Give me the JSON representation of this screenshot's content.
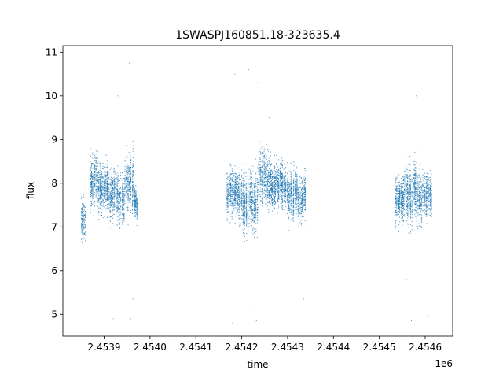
{
  "chart_data": {
    "type": "scatter",
    "title": "1SWASPJ160851.18-323635.4",
    "xlabel": "time",
    "ylabel": "flux",
    "x_offset_label": "1e6",
    "xlim": [
      2453810,
      2454660
    ],
    "ylim": [
      4.5,
      11.15
    ],
    "x_ticks": [
      2453900,
      2454000,
      2454100,
      2454200,
      2454300,
      2454400,
      2454500,
      2454600
    ],
    "x_tick_labels": [
      "2.4539",
      "2.4540",
      "2.4541",
      "2.4542",
      "2.4543",
      "2.4544",
      "2.4545",
      "2.4546"
    ],
    "y_ticks": [
      5,
      6,
      7,
      8,
      9,
      10,
      11
    ],
    "y_tick_labels": [
      "5",
      "6",
      "7",
      "8",
      "9",
      "10",
      "11"
    ],
    "grid": false,
    "legend": "none",
    "marker_color": "#1f77b4",
    "clusters": [
      {
        "x_start": 2453850,
        "x_end": 2453860,
        "y_center": 7.2,
        "y_spread": 0.4
      },
      {
        "x_start": 2453870,
        "x_end": 2453910,
        "y_center": 8.0,
        "y_spread": 0.5
      },
      {
        "x_start": 2453910,
        "x_end": 2453945,
        "y_center": 7.7,
        "y_spread": 0.5
      },
      {
        "x_start": 2453945,
        "x_end": 2453965,
        "y_center": 8.0,
        "y_spread": 0.55
      },
      {
        "x_start": 2453965,
        "x_end": 2453975,
        "y_center": 7.5,
        "y_spread": 0.3
      },
      {
        "x_start": 2454165,
        "x_end": 2454195,
        "y_center": 7.8,
        "y_spread": 0.45
      },
      {
        "x_start": 2454195,
        "x_end": 2454235,
        "y_center": 7.6,
        "y_spread": 0.55
      },
      {
        "x_start": 2454235,
        "x_end": 2454260,
        "y_center": 8.1,
        "y_spread": 0.6
      },
      {
        "x_start": 2454260,
        "x_end": 2454300,
        "y_center": 8.0,
        "y_spread": 0.45
      },
      {
        "x_start": 2454300,
        "x_end": 2454340,
        "y_center": 7.7,
        "y_spread": 0.45
      },
      {
        "x_start": 2454535,
        "x_end": 2454555,
        "y_center": 7.6,
        "y_spread": 0.45
      },
      {
        "x_start": 2454555,
        "x_end": 2454590,
        "y_center": 7.8,
        "y_spread": 0.55
      },
      {
        "x_start": 2454590,
        "x_end": 2454615,
        "y_center": 7.7,
        "y_spread": 0.45
      }
    ],
    "outliers": [
      {
        "x": 2453940,
        "y": 10.8
      },
      {
        "x": 2453955,
        "y": 10.75
      },
      {
        "x": 2453930,
        "y": 10.0
      },
      {
        "x": 2453965,
        "y": 10.7
      },
      {
        "x": 2453920,
        "y": 4.9
      },
      {
        "x": 2453958,
        "y": 4.9
      },
      {
        "x": 2453963,
        "y": 5.35
      },
      {
        "x": 2453950,
        "y": 5.2
      },
      {
        "x": 2454185,
        "y": 10.5
      },
      {
        "x": 2454215,
        "y": 10.6
      },
      {
        "x": 2454235,
        "y": 10.3
      },
      {
        "x": 2454260,
        "y": 9.5
      },
      {
        "x": 2454180,
        "y": 4.8
      },
      {
        "x": 2454232,
        "y": 4.85
      },
      {
        "x": 2454220,
        "y": 5.2
      },
      {
        "x": 2454335,
        "y": 5.35
      },
      {
        "x": 2454580,
        "y": 10.0
      },
      {
        "x": 2454608,
        "y": 10.8
      },
      {
        "x": 2454570,
        "y": 4.85
      },
      {
        "x": 2454605,
        "y": 4.95
      },
      {
        "x": 2454560,
        "y": 5.8
      }
    ]
  }
}
